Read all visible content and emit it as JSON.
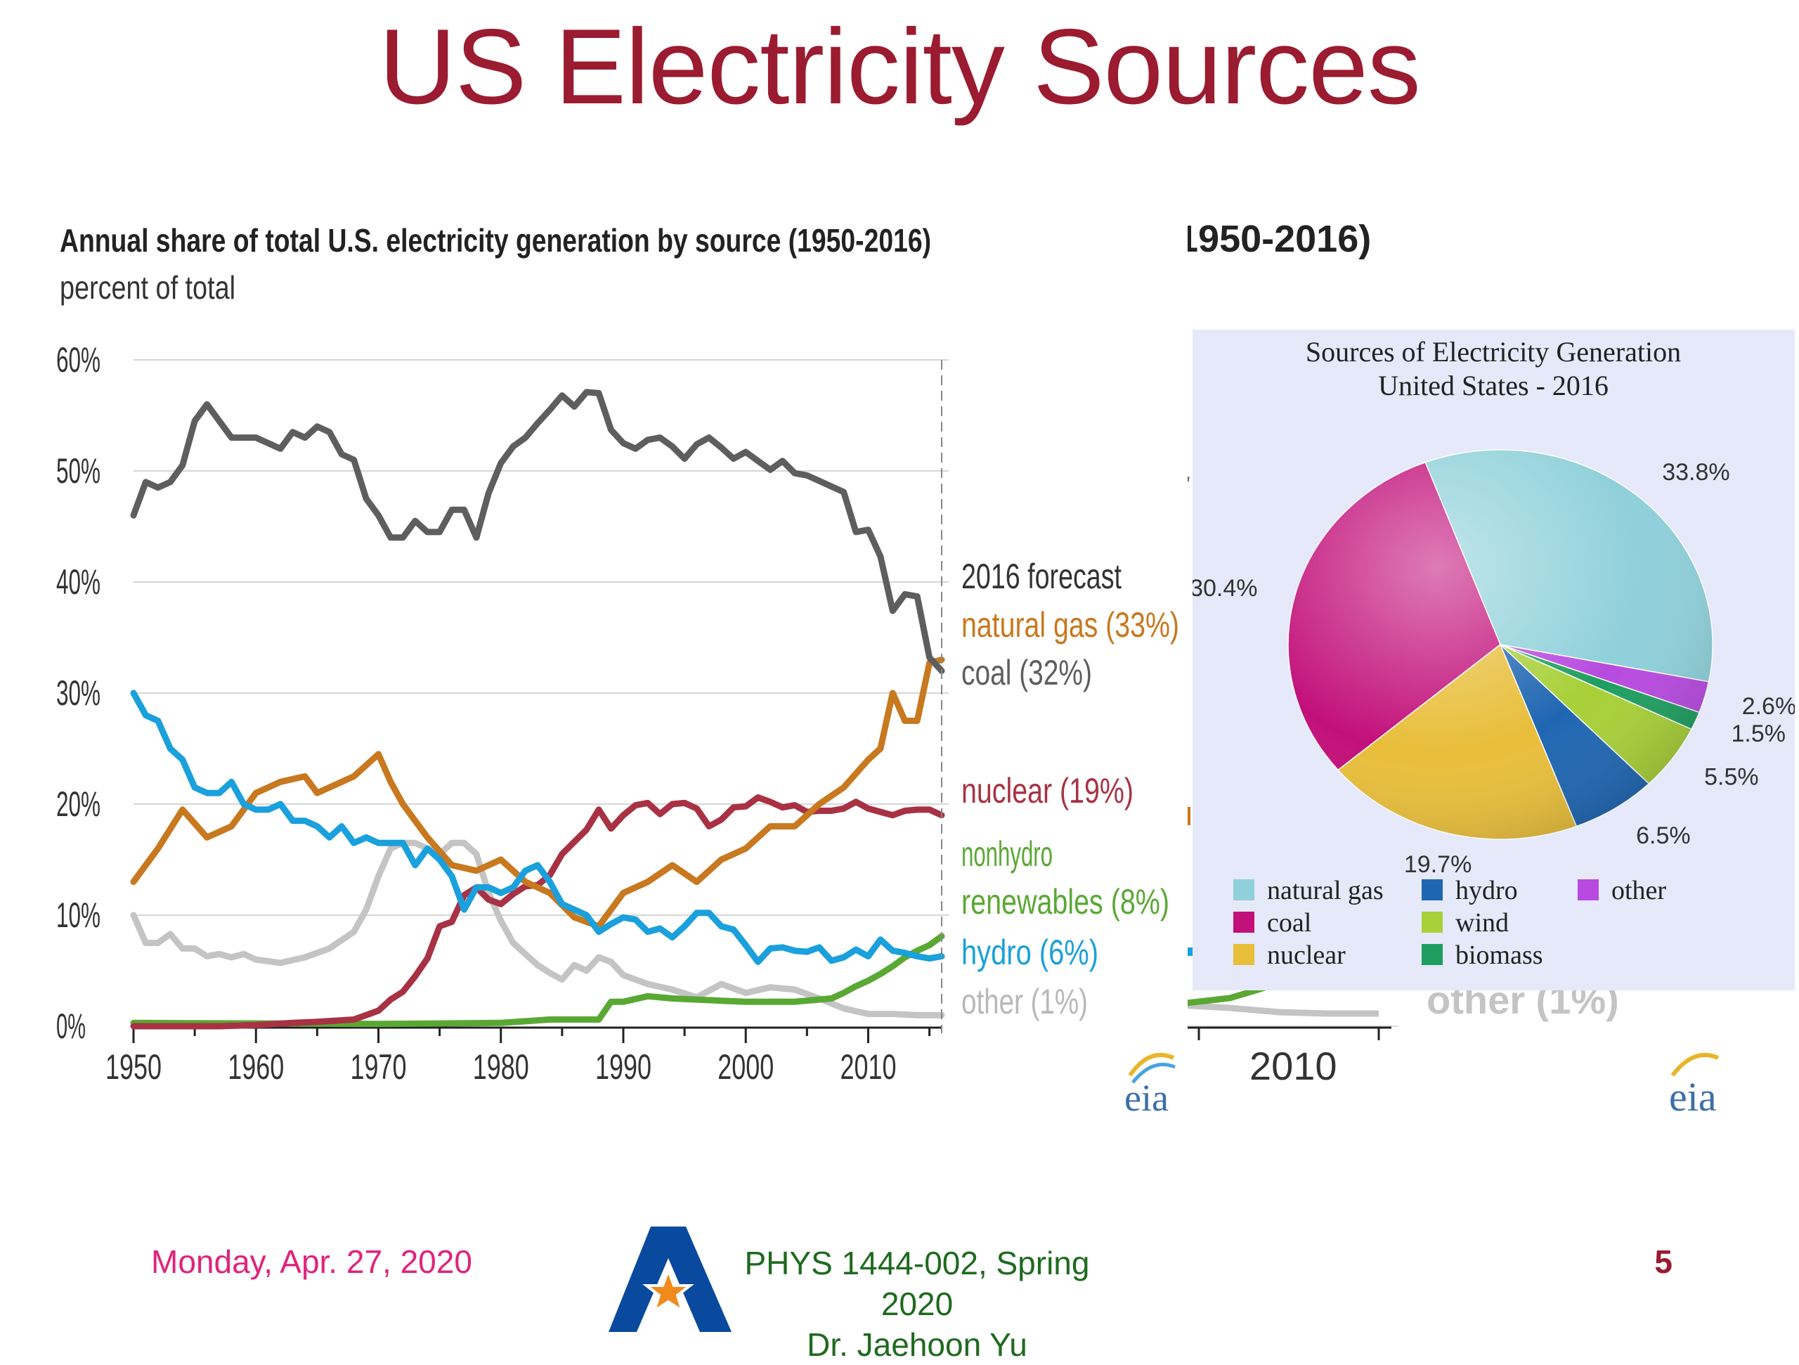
{
  "slide": {
    "title": "US Electricity Sources",
    "footer_date": "Monday, Apr. 27, 2020",
    "footer_course_line1": "PHYS 1444-002, Spring 2020",
    "footer_course_line2": "Dr. Jaehoon Yu",
    "page_number": "5"
  },
  "colors": {
    "title": "#9b1b30",
    "coal": "#5e5e5e",
    "natural_gas": "#c8781e",
    "nuclear": "#a83244",
    "nonhydro_renewables": "#5aa834",
    "hydro": "#1aa0dc",
    "other": "#c4c4c4",
    "pie_natural_gas": "#8fd0da",
    "pie_coal": "#c2107a",
    "pie_nuclear": "#e8be3a",
    "pie_hydro": "#1f66b2",
    "pie_wind": "#a8d038",
    "pie_biomass": "#1e9e60",
    "pie_other": "#b84ae0"
  },
  "chart_data": [
    {
      "type": "line",
      "title": "Annual share of total U.S. electricity generation by source (1950-2016)",
      "subtitle": "percent of total",
      "ylabel": "",
      "xlabel": "",
      "ylim": [
        0,
        60
      ],
      "xlim": [
        1950,
        2016
      ],
      "yticks": [
        "0%",
        "10%",
        "20%",
        "30%",
        "40%",
        "50%",
        "60%"
      ],
      "xticks": [
        "1950",
        "1960",
        "1970",
        "1980",
        "1990",
        "2000",
        "2010"
      ],
      "grid": true,
      "forecast_label": "2016 forecast",
      "brand": "eia",
      "series": [
        {
          "name": "coal",
          "end_label": "coal (32%)",
          "x": [
            1950,
            1951,
            1952,
            1953,
            1954,
            1955,
            1956,
            1957,
            1958,
            1959,
            1960,
            1961,
            1962,
            1963,
            1964,
            1965,
            1966,
            1967,
            1968,
            1969,
            1970,
            1971,
            1972,
            1973,
            1974,
            1975,
            1976,
            1977,
            1978,
            1979,
            1980,
            1981,
            1982,
            1983,
            1984,
            1985,
            1986,
            1987,
            1988,
            1989,
            1990,
            1991,
            1992,
            1993,
            1994,
            1995,
            1996,
            1997,
            1998,
            1999,
            2000,
            2001,
            2002,
            2003,
            2004,
            2005,
            2006,
            2007,
            2008,
            2009,
            2010,
            2011,
            2012,
            2013,
            2014,
            2015,
            2016
          ],
          "y": [
            46,
            49,
            48.5,
            49,
            50.5,
            54.5,
            56,
            54.5,
            53,
            53,
            53,
            52.5,
            52,
            53.5,
            53,
            54,
            53.5,
            51.5,
            51,
            47.5,
            46,
            44,
            44,
            45.5,
            44.5,
            44.5,
            46.5,
            46.5,
            44,
            48,
            50.7,
            52.2,
            53,
            54.3,
            55.5,
            56.8,
            55.8,
            57.1,
            57,
            53.7,
            52.5,
            52,
            52.8,
            53,
            52.2,
            51.1,
            52.4,
            53,
            52.1,
            51.1,
            51.7,
            50.9,
            50.1,
            50.9,
            49.8,
            49.6,
            49.1,
            48.6,
            48.1,
            44.5,
            44.7,
            42.3,
            37.4,
            38.9,
            38.7,
            33.2,
            32
          ]
        },
        {
          "name": "natural gas",
          "end_label": "natural gas (33%)",
          "x": [
            1950,
            1952,
            1954,
            1956,
            1958,
            1960,
            1962,
            1964,
            1965,
            1966,
            1968,
            1970,
            1971,
            1972,
            1974,
            1976,
            1978,
            1980,
            1982,
            1984,
            1986,
            1988,
            1990,
            1992,
            1994,
            1996,
            1998,
            2000,
            2002,
            2004,
            2006,
            2008,
            2010,
            2011,
            2012,
            2013,
            2014,
            2015,
            2016
          ],
          "y": [
            13,
            16,
            19.5,
            17,
            18,
            21,
            22,
            22.5,
            21,
            21.5,
            22.5,
            24.5,
            22,
            20,
            17,
            14.5,
            14,
            15,
            13,
            12,
            9.8,
            9,
            12,
            13,
            14.5,
            13,
            15,
            16,
            18,
            18,
            20,
            21.5,
            24,
            25,
            30,
            27.5,
            27.5,
            32.7,
            33
          ]
        },
        {
          "name": "nuclear",
          "end_label": "nuclear (19%)",
          "x": [
            1950,
            1957,
            1960,
            1963,
            1965,
            1968,
            1970,
            1971,
            1972,
            1973,
            1974,
            1975,
            1976,
            1977,
            1978,
            1979,
            1980,
            1981,
            1982,
            1983,
            1984,
            1985,
            1986,
            1987,
            1988,
            1989,
            1990,
            1991,
            1992,
            1993,
            1994,
            1995,
            1996,
            1997,
            1998,
            1999,
            2000,
            2001,
            2002,
            2003,
            2004,
            2005,
            2006,
            2007,
            2008,
            2009,
            2010,
            2011,
            2012,
            2013,
            2014,
            2015,
            2016
          ],
          "y": [
            0,
            0,
            0.1,
            0.3,
            0.4,
            0.6,
            1.4,
            2.4,
            3.1,
            4.5,
            6.1,
            9,
            9.4,
            11.8,
            12.5,
            11.4,
            11,
            11.9,
            12.6,
            12.7,
            13.6,
            15.5,
            16.6,
            17.7,
            19.5,
            17.8,
            19,
            19.9,
            20.1,
            19.1,
            20,
            20.1,
            19.6,
            18,
            18.6,
            19.7,
            19.8,
            20.6,
            20.2,
            19.7,
            19.9,
            19.3,
            19.4,
            19.4,
            19.6,
            20.2,
            19.6,
            19.3,
            19,
            19.4,
            19.5,
            19.5,
            19
          ]
        },
        {
          "name": "nonhydro renewables",
          "end_label_line1": "nonhydro",
          "end_label_line2": "renewables (8%)",
          "x": [
            1950,
            1970,
            1980,
            1984,
            1988,
            1989,
            1990,
            1992,
            1994,
            1996,
            1998,
            2000,
            2002,
            2004,
            2006,
            2007,
            2008,
            2009,
            2010,
            2011,
            2012,
            2013,
            2014,
            2015,
            2016
          ],
          "y": [
            0.3,
            0.2,
            0.3,
            0.6,
            0.6,
            2.2,
            2.2,
            2.7,
            2.5,
            2.4,
            2.3,
            2.2,
            2.2,
            2.2,
            2.4,
            2.5,
            3,
            3.6,
            4.1,
            4.7,
            5.4,
            6.2,
            6.8,
            7.3,
            8.1
          ]
        },
        {
          "name": "hydro",
          "end_label": "hydro (6%)",
          "x": [
            1950,
            1951,
            1952,
            1953,
            1954,
            1955,
            1956,
            1957,
            1958,
            1959,
            1960,
            1961,
            1962,
            1963,
            1964,
            1965,
            1966,
            1967,
            1968,
            1969,
            1970,
            1971,
            1972,
            1973,
            1974,
            1975,
            1976,
            1977,
            1978,
            1979,
            1980,
            1981,
            1982,
            1983,
            1984,
            1985,
            1986,
            1987,
            1988,
            1989,
            1990,
            1991,
            1992,
            1993,
            1994,
            1995,
            1996,
            1997,
            1998,
            1999,
            2000,
            2001,
            2002,
            2003,
            2004,
            2005,
            2006,
            2007,
            2008,
            2009,
            2010,
            2011,
            2012,
            2013,
            2014,
            2015,
            2016
          ],
          "y": [
            30,
            28,
            27.5,
            25,
            24,
            21.5,
            21,
            21,
            22,
            20,
            19.5,
            19.5,
            20,
            18.5,
            18.5,
            18,
            17,
            18,
            16.5,
            17,
            16.5,
            16.5,
            16.5,
            14.5,
            16,
            15,
            13.5,
            10.5,
            12.5,
            12.5,
            12,
            12.5,
            14,
            14.5,
            13,
            11,
            10.5,
            10,
            8.5,
            9.2,
            9.8,
            9.6,
            8.5,
            8.8,
            8,
            9,
            10.2,
            10.2,
            9,
            8.7,
            7.3,
            5.8,
            7,
            7.1,
            6.8,
            6.7,
            7.1,
            5.9,
            6.2,
            6.9,
            6.3,
            7.8,
            6.8,
            6.6,
            6.3,
            6.1,
            6.3
          ]
        },
        {
          "name": "other",
          "end_label": "other (1%)",
          "x": [
            1950,
            1951,
            1952,
            1953,
            1954,
            1955,
            1956,
            1957,
            1958,
            1959,
            1960,
            1962,
            1964,
            1966,
            1968,
            1969,
            1970,
            1971,
            1972,
            1973,
            1974,
            1975,
            1976,
            1977,
            1978,
            1979,
            1980,
            1981,
            1982,
            1983,
            1984,
            1985,
            1986,
            1987,
            1988,
            1989,
            1990,
            1992,
            1994,
            1996,
            1998,
            2000,
            2002,
            2004,
            2006,
            2008,
            2010,
            2012,
            2014,
            2016
          ],
          "y": [
            10,
            7.5,
            7.5,
            8.3,
            7,
            7,
            6.3,
            6.5,
            6.2,
            6.5,
            6,
            5.7,
            6.2,
            7,
            8.5,
            10.5,
            13.5,
            16,
            16.5,
            16.5,
            16,
            15.5,
            16.5,
            16.5,
            15.5,
            12,
            9.5,
            7.5,
            6.5,
            5.5,
            4.8,
            4.2,
            5.5,
            5,
            6.2,
            5.8,
            4.6,
            3.8,
            3.3,
            2.6,
            3.8,
            3,
            3.5,
            3.3,
            2.5,
            1.6,
            1.1,
            1.1,
            1,
            1
          ]
        }
      ]
    },
    {
      "type": "pie",
      "title": "Sources of Electricity Generation",
      "subtitle": "United States - 2016",
      "labels": [
        "natural gas",
        "coal",
        "nuclear",
        "hydro",
        "wind",
        "biomass",
        "other"
      ],
      "values": [
        33.8,
        30.4,
        19.7,
        6.5,
        5.5,
        1.5,
        2.6
      ],
      "value_labels": [
        "33.8%",
        "30.4%",
        "19.7%",
        "6.5%",
        "5.5%",
        "1.5%",
        "2.6%"
      ]
    }
  ],
  "background_copy": {
    "title_fragment": "1950-2016)",
    "x_tick": "2010",
    "label": "other (1%)",
    "brand": "eia"
  }
}
